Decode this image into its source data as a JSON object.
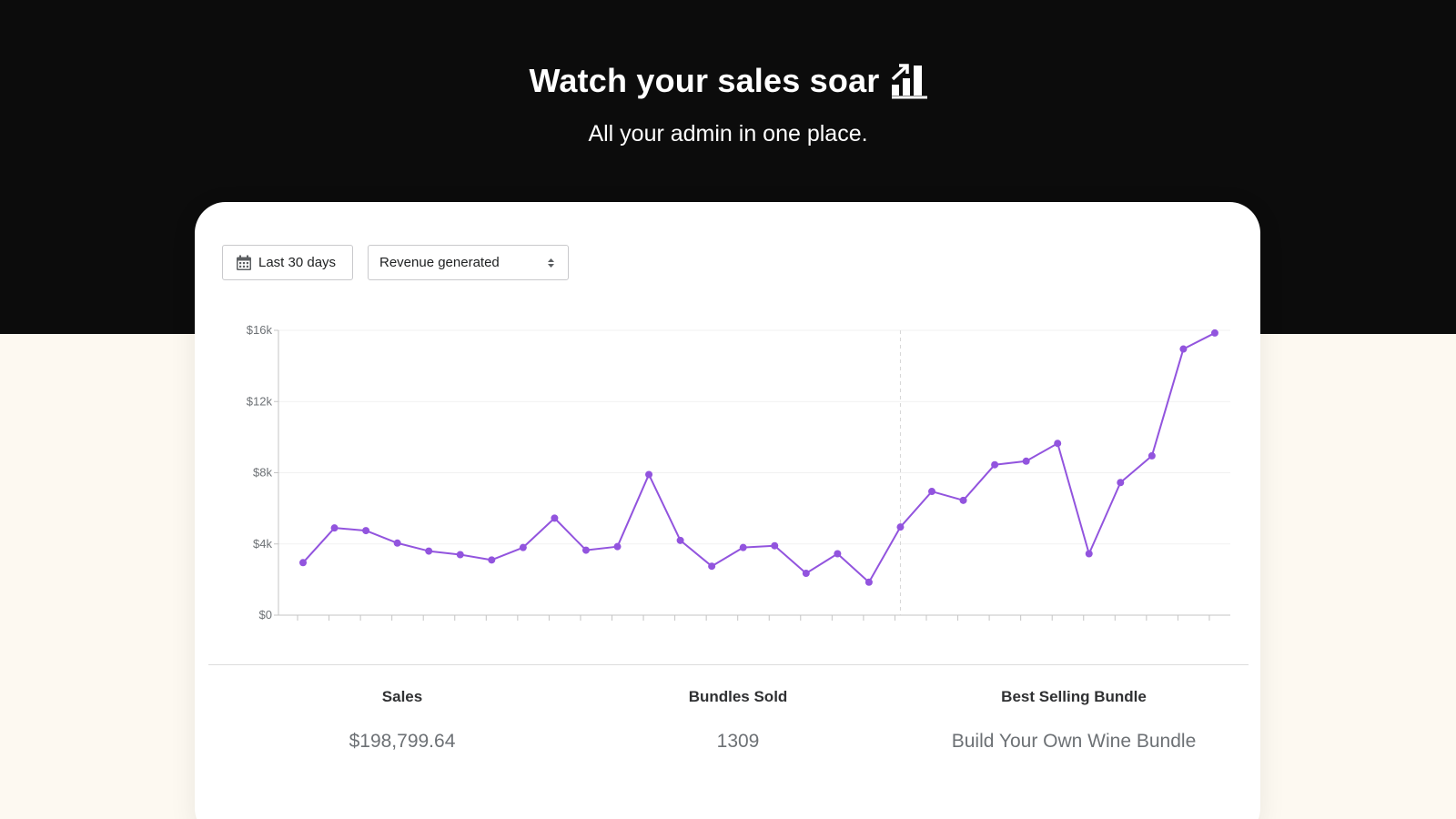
{
  "hero": {
    "title": "Watch your sales soar",
    "title_icon": "bar-chart-trend-icon",
    "subtitle": "All your admin in one place."
  },
  "filters": {
    "date_range_label": "Last 30 days",
    "date_icon": "calendar-icon",
    "metric_value": "Revenue generated",
    "metric_icon": "select-arrows-icon"
  },
  "colors": {
    "hero_background": "#0c0c0c",
    "page_background": "#fdf9f1",
    "line": "#9254de",
    "axis": "#c4c4c4"
  },
  "chart_data": {
    "type": "line",
    "y_ticks": [
      "$0",
      "$4k",
      "$8k",
      "$12k",
      "$16k"
    ],
    "ylim": [
      0,
      16000
    ],
    "points": 30,
    "series": [
      {
        "values": [
          2950,
          4900,
          4750,
          4050,
          3600,
          3400,
          3100,
          3800,
          5450,
          3650,
          3850,
          7900,
          4200,
          2750,
          3800,
          3900,
          2350,
          3450,
          1850,
          4950,
          6950,
          6450,
          8450,
          8650,
          9650,
          3450,
          7450,
          8950,
          14950,
          15850
        ]
      }
    ],
    "marker_index": 19,
    "grid": true
  },
  "stats": [
    {
      "label": "Sales",
      "value": "$198,799.64"
    },
    {
      "label": "Bundles Sold",
      "value": "1309"
    },
    {
      "label": "Best Selling Bundle",
      "value": "Build Your Own Wine Bundle"
    }
  ]
}
